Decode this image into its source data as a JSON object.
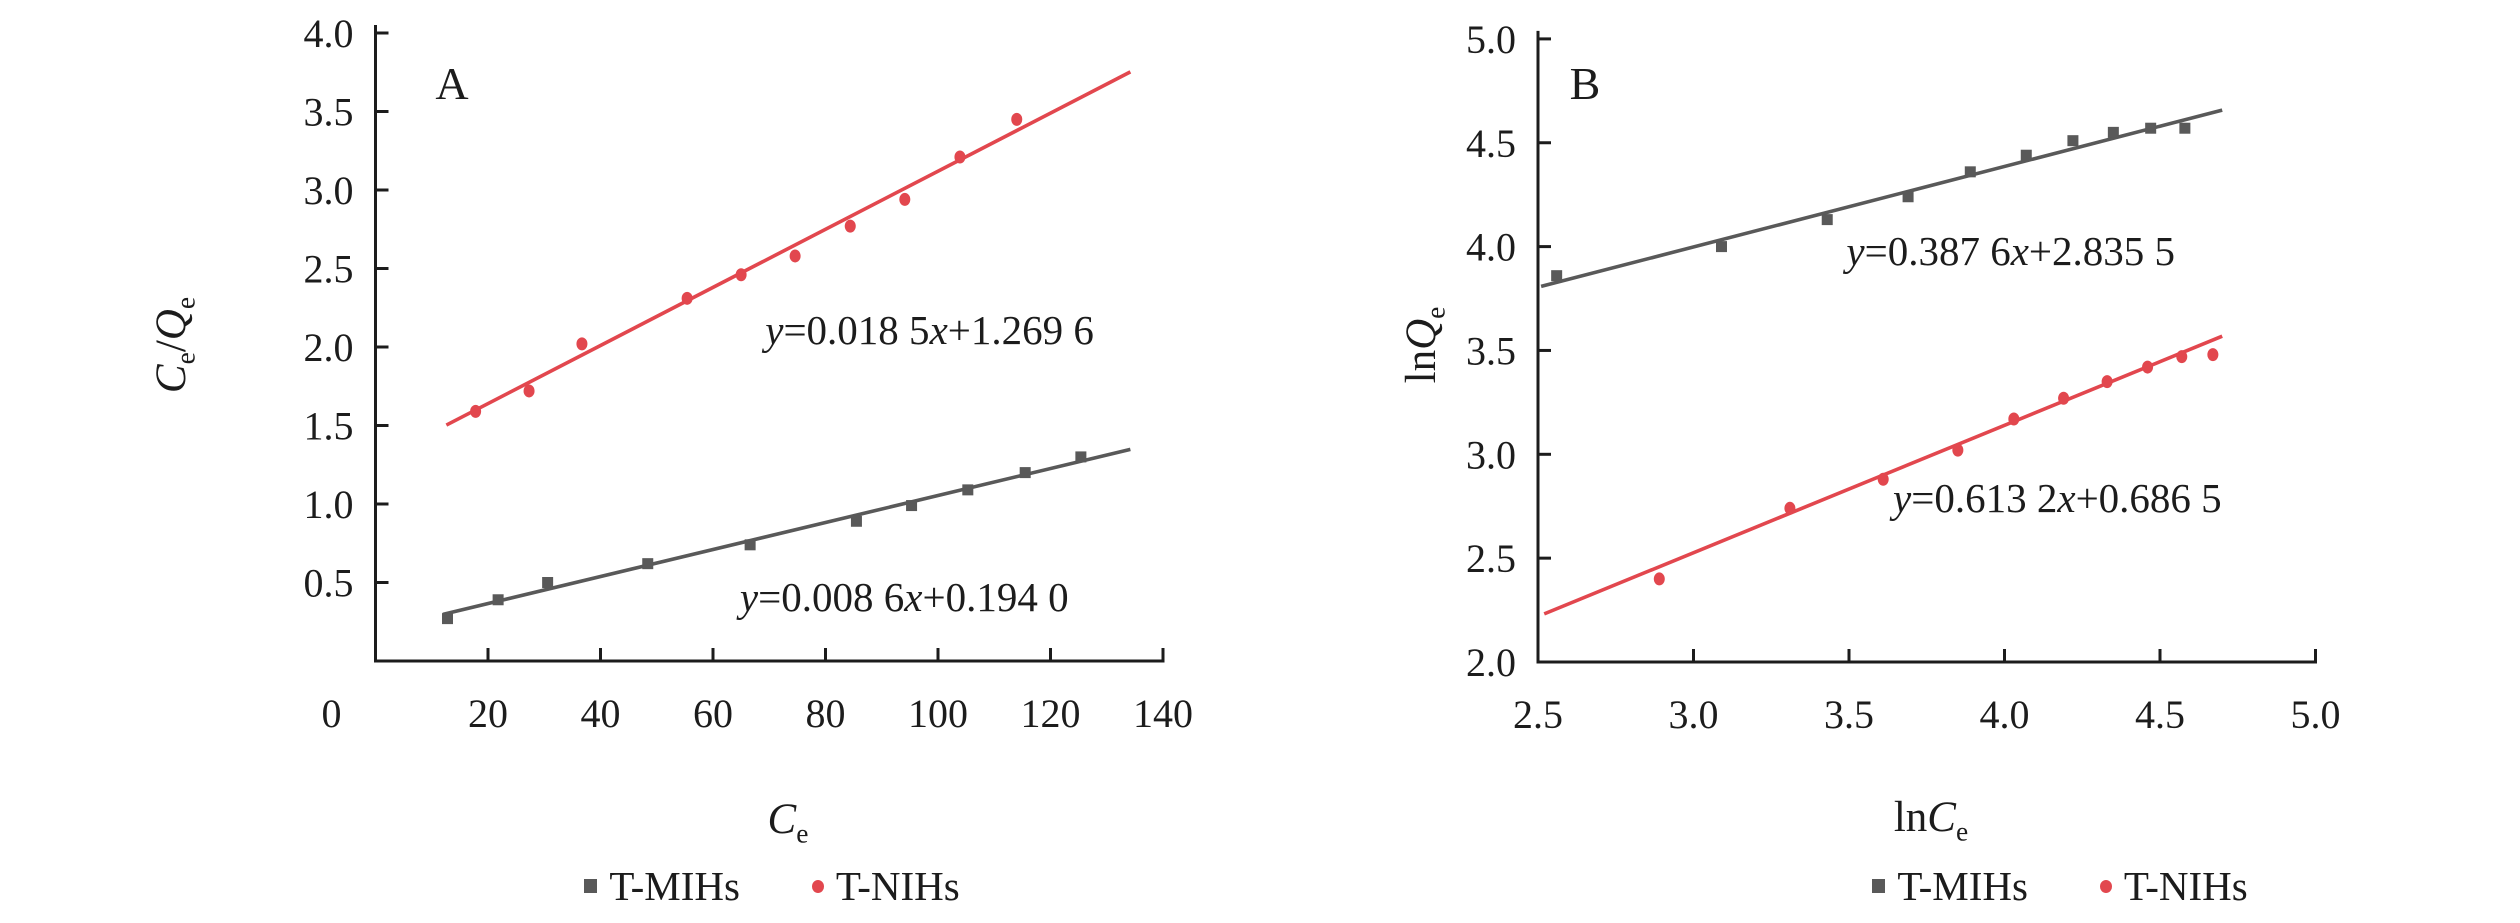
{
  "figure": {
    "background": "#ffffff",
    "text_color": "#1c1c1c",
    "panel_labels": [
      "A",
      "B"
    ]
  },
  "colors": {
    "t_mihs": "#595959",
    "t_nihs": "#e2474e",
    "axis": "#1c1c1c"
  },
  "legend": {
    "items": [
      {
        "label": "T-MIHs",
        "marker": "square",
        "color_key": "t_mihs"
      },
      {
        "label": "T-NIHs",
        "marker": "circle",
        "color_key": "t_nihs"
      }
    ]
  },
  "chart_data": [
    {
      "id": "A",
      "type": "scatter",
      "panel_label": "A",
      "xlabel": "C_e",
      "ylabel": "C_e/Q_e",
      "xlim": [
        0,
        140
      ],
      "ylim": [
        0,
        4.0
      ],
      "grid": false,
      "xticks": [
        {
          "v": 0,
          "label": "0",
          "tick": false,
          "dx": -44
        },
        {
          "v": 20,
          "label": "20",
          "tick": true
        },
        {
          "v": 40,
          "label": "40",
          "tick": true
        },
        {
          "v": 60,
          "label": "60",
          "tick": true
        },
        {
          "v": 80,
          "label": "80",
          "tick": true
        },
        {
          "v": 100,
          "label": "100",
          "tick": true
        },
        {
          "v": 120,
          "label": "120",
          "tick": true
        },
        {
          "v": 140,
          "label": "140",
          "tick": true
        }
      ],
      "yticks": [
        {
          "v": 0.5,
          "label": "0.5",
          "tick": true
        },
        {
          "v": 1.0,
          "label": "1.0",
          "tick": true
        },
        {
          "v": 1.5,
          "label": "1.5",
          "tick": true
        },
        {
          "v": 2.0,
          "label": "2.0",
          "tick": true
        },
        {
          "v": 2.5,
          "label": "2.5",
          "tick": true
        },
        {
          "v": 3.0,
          "label": "3.0",
          "tick": true
        },
        {
          "v": 3.5,
          "label": "3.5",
          "tick": true
        },
        {
          "v": 4.0,
          "label": "4.0",
          "tick": true
        }
      ],
      "series": [
        {
          "name": "T-MIHs",
          "marker": "square",
          "color_key": "t_mihs",
          "points": [
            [
              12.8,
              0.27
            ],
            [
              21.8,
              0.39
            ],
            [
              30.6,
              0.5
            ],
            [
              48.4,
              0.62
            ],
            [
              66.6,
              0.74
            ],
            [
              85.5,
              0.89
            ],
            [
              95.3,
              0.99
            ],
            [
              105.3,
              1.09
            ],
            [
              115.5,
              1.2
            ],
            [
              125.4,
              1.3
            ]
          ],
          "fit": {
            "equation": "y=0.008 6x+0.194 0",
            "slope": 0.0086,
            "intercept": 0.194,
            "x_range": [
              12.0,
              134.2
            ],
            "label_pos": [
              94.0,
              0.41
            ]
          }
        },
        {
          "name": "T-NIHs",
          "marker": "circle",
          "color_key": "t_nihs",
          "points": [
            [
              17.8,
              1.59
            ],
            [
              27.3,
              1.72
            ],
            [
              36.7,
              2.02
            ],
            [
              55.4,
              2.31
            ],
            [
              65.0,
              2.46
            ],
            [
              74.6,
              2.58
            ],
            [
              84.4,
              2.77
            ],
            [
              94.1,
              2.94
            ],
            [
              103.9,
              3.21
            ],
            [
              114.0,
              3.45
            ]
          ],
          "fit": {
            "equation": "y=0.018 5x+1.269 6",
            "slope": 0.0185,
            "intercept": 1.2696,
            "x_range": [
              12.6,
              134.2
            ],
            "label_pos": [
              98.5,
              2.11
            ]
          }
        }
      ]
    },
    {
      "id": "B",
      "type": "scatter",
      "panel_label": "B",
      "xlabel": "lnC_e",
      "ylabel": "lnQ_e",
      "xlim": [
        2.5,
        5.0
      ],
      "ylim": [
        2.0,
        5.0
      ],
      "grid": false,
      "xticks": [
        {
          "v": 2.5,
          "label": "2.5",
          "tick": false
        },
        {
          "v": 3.0,
          "label": "3.0",
          "tick": true
        },
        {
          "v": 3.5,
          "label": "3.5",
          "tick": true
        },
        {
          "v": 4.0,
          "label": "4.0",
          "tick": true
        },
        {
          "v": 4.5,
          "label": "4.5",
          "tick": true
        },
        {
          "v": 5.0,
          "label": "5.0",
          "tick": true
        }
      ],
      "yticks": [
        {
          "v": 2.0,
          "label": "2.0",
          "tick": false
        },
        {
          "v": 2.5,
          "label": "2.5",
          "tick": true
        },
        {
          "v": 3.0,
          "label": "3.0",
          "tick": true
        },
        {
          "v": 3.5,
          "label": "3.5",
          "tick": true
        },
        {
          "v": 4.0,
          "label": "4.0",
          "tick": true
        },
        {
          "v": 4.5,
          "label": "4.5",
          "tick": true
        },
        {
          "v": 5.0,
          "label": "5.0",
          "tick": true
        }
      ],
      "series": [
        {
          "name": "T-MIHs",
          "marker": "square",
          "color_key": "t_mihs",
          "points": [
            [
              2.56,
              3.86
            ],
            [
              3.09,
              4.0
            ],
            [
              3.43,
              4.13
            ],
            [
              3.69,
              4.24
            ],
            [
              3.89,
              4.36
            ],
            [
              4.07,
              4.44
            ],
            [
              4.22,
              4.51
            ],
            [
              4.35,
              4.55
            ],
            [
              4.47,
              4.57
            ],
            [
              4.58,
              4.57
            ]
          ],
          "fit": {
            "equation": "y=0.387 6x+2.835 5",
            "slope": 0.3876,
            "intercept": 2.8355,
            "x_range": [
              2.51,
              4.7
            ],
            "label_pos": [
              4.02,
              3.98
            ]
          }
        },
        {
          "name": "T-NIHs",
          "marker": "circle",
          "color_key": "t_nihs",
          "points": [
            [
              2.89,
              2.4
            ],
            [
              3.31,
              2.74
            ],
            [
              3.61,
              2.88
            ],
            [
              3.85,
              3.02
            ],
            [
              4.03,
              3.17
            ],
            [
              4.19,
              3.27
            ],
            [
              4.33,
              3.35
            ],
            [
              4.46,
              3.42
            ],
            [
              4.57,
              3.47
            ],
            [
              4.67,
              3.48
            ]
          ],
          "fit": {
            "equation": "y=0.613 2x+0.686 5",
            "slope": 0.6132,
            "intercept": 0.6865,
            "x_range": [
              2.52,
              4.7
            ],
            "label_pos": [
              4.17,
              2.79
            ]
          }
        }
      ]
    }
  ]
}
